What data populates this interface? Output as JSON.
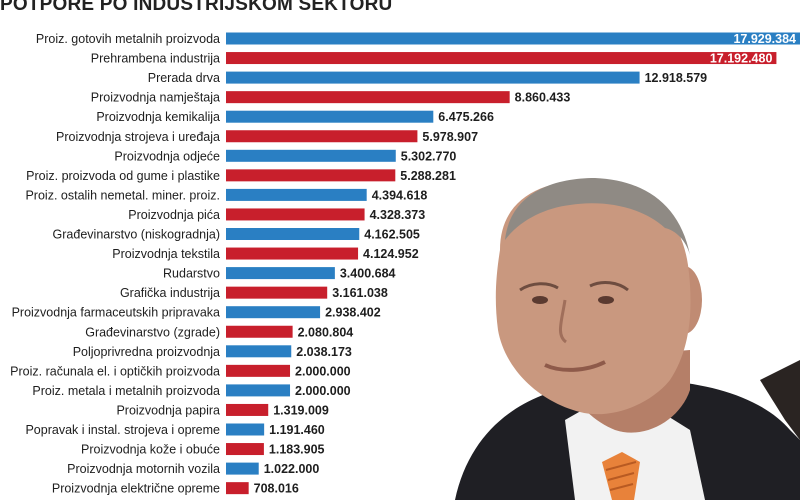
{
  "chart_data": {
    "type": "bar",
    "orientation": "horizontal",
    "title": "POTPORE PO INDUSTRIJSKOM SEKTORU",
    "colors": [
      "#2a7fc3",
      "#c81f2c"
    ],
    "color_pattern": "alternating",
    "categories": [
      "Proiz. gotovih metalnih proizvoda",
      "Prehrambena industrija",
      "Prerada drva",
      "Proizvodnja namještaja",
      "Proizvodnja kemikalija",
      "Proizvodnja strojeva i uređaja",
      "Proizvodnja odjeće",
      "Proiz. proizvoda od gume i plastike",
      "Proiz. ostalih nemetal. miner. proiz.",
      "Proizvodnja pića",
      "Građevinarstvo (niskogradnja)",
      "Proizvodnja tekstila",
      "Rudarstvo",
      "Grafička industrija",
      "Proizvodnja farmaceutskih pripravaka",
      "Građevinarstvo (zgrade)",
      "Poljoprivredna proizvodnja",
      "Proiz. računala el. i optičkih proizvoda",
      "Proiz. metala i metalnih proizvoda",
      "Proizvodnja papira",
      "Popravak i instal. strojeva i opreme",
      "Proizvodnja kože i obuće",
      "Proizvodnja motornih vozila",
      "Proizvodnja električne opreme"
    ],
    "values": [
      17929384,
      17192480,
      12918579,
      8860433,
      6475266,
      5978907,
      5302770,
      5288281,
      4394618,
      4328373,
      4162505,
      4124952,
      3400684,
      3161038,
      2938402,
      2080804,
      2038173,
      2000000,
      2000000,
      1319009,
      1191460,
      1183905,
      1022000,
      708016
    ],
    "value_labels": [
      "17.929.384",
      "17.192.480",
      "12.918.579",
      "8.860.433",
      "6.475.266",
      "5.978.907",
      "5.302.770",
      "5.288.281",
      "4.394.618",
      "4.328.373",
      "4.162.505",
      "4.124.952",
      "3.400.684",
      "3.161.038",
      "2.938.402",
      "2.080.804",
      "2.038.173",
      "2.000.000",
      "2.000.000",
      "1.319.009",
      "1.191.460",
      "1.183.905",
      "1.022.000",
      "708.016"
    ],
    "xlim": [
      0,
      17929384
    ],
    "grid": false,
    "legend": "none"
  },
  "photo": {
    "description_icon": "man-portrait-photo",
    "skin": "#c9987f",
    "suit": "#1f1f24",
    "shirt": "#f2f2f2",
    "tie": "#e8823a"
  }
}
